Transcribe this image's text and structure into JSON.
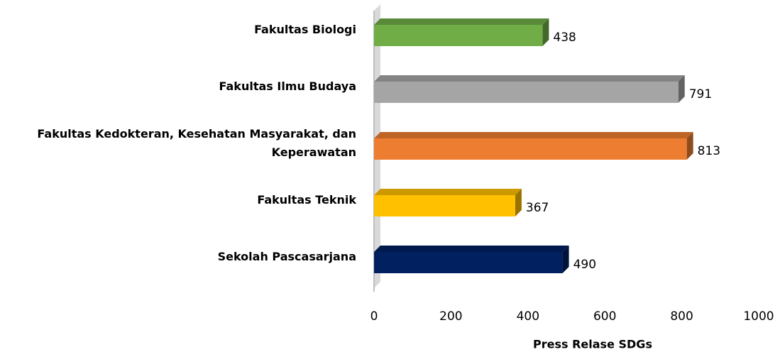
{
  "chart_data": {
    "type": "bar",
    "orientation": "horizontal",
    "x_label": "Press Relase SDGs",
    "categories": [
      "Fakultas Biologi",
      "Fakultas Ilmu Budaya",
      "Fakultas Kedokteran, Kesehatan Masyarakat, dan Keperawatan",
      "Fakultas Teknik",
      "Sekolah Pascasarjana"
    ],
    "values": [
      438,
      791,
      813,
      367,
      490
    ],
    "colors": [
      "#70ad47",
      "#a5a5a5",
      "#ed7d31",
      "#ffc000",
      "#002060"
    ],
    "xlim": [
      0,
      1000
    ],
    "xticks": [
      0,
      200,
      400,
      600,
      800,
      1000
    ]
  }
}
